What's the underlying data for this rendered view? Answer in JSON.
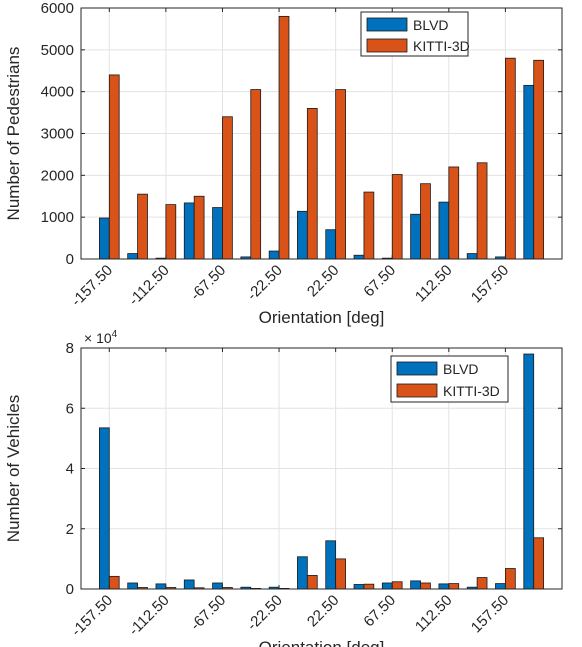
{
  "chart_data": [
    {
      "type": "bar",
      "xlabel": "Orientation [deg]",
      "ylabel": "Number of Pedestrians",
      "ylim": [
        0,
        6000
      ],
      "yticks": [
        0,
        1000,
        2000,
        3000,
        4000,
        5000,
        6000
      ],
      "ytick_labels": [
        "0",
        "1000",
        "2000",
        "3000",
        "4000",
        "5000",
        "6000"
      ],
      "y_exponent_label": "",
      "xlim": [
        -180,
        202.5
      ],
      "xticks": [
        -157.5,
        -112.5,
        -67.5,
        -22.5,
        22.5,
        67.5,
        112.5,
        157.5
      ],
      "xtick_labels": [
        "-157.50",
        "-112.50",
        "-67.50",
        "-22.50",
        "22.50",
        "67.50",
        "112.50",
        "157.50"
      ],
      "x": [
        -157.5,
        -135,
        -112.5,
        -90,
        -67.5,
        -45,
        -22.5,
        0,
        22.5,
        45,
        67.5,
        90,
        112.5,
        135,
        157.5,
        180
      ],
      "grid": true,
      "legend_position": "top-right",
      "series": [
        {
          "name": "BLVD",
          "color": "#0072BD",
          "values": [
            980,
            130,
            20,
            1340,
            1230,
            50,
            190,
            1140,
            700,
            90,
            20,
            1070,
            1360,
            130,
            50,
            4150
          ]
        },
        {
          "name": "KITTI-3D",
          "color": "#D95319",
          "values": [
            4400,
            1550,
            1300,
            1500,
            3400,
            4050,
            5800,
            3600,
            4050,
            1600,
            2020,
            1800,
            2200,
            2300,
            4800,
            4750
          ]
        }
      ]
    },
    {
      "type": "bar",
      "xlabel": "Orientation [deg]",
      "ylabel": "Number of Vehicles",
      "ylim": [
        0,
        8
      ],
      "yticks": [
        0,
        2,
        4,
        6,
        8
      ],
      "ytick_labels": [
        "0",
        "2",
        "4",
        "6",
        "8"
      ],
      "y_exponent_label": "× 10^4",
      "xlim": [
        -180,
        202.5
      ],
      "xticks": [
        -157.5,
        -112.5,
        -67.5,
        -22.5,
        22.5,
        67.5,
        112.5,
        157.5
      ],
      "xtick_labels": [
        "-157.50",
        "-112.50",
        "-67.50",
        "-22.50",
        "22.50",
        "67.50",
        "112.50",
        "157.50"
      ],
      "x": [
        -157.5,
        -135,
        -112.5,
        -90,
        -67.5,
        -45,
        -22.5,
        0,
        22.5,
        45,
        67.5,
        90,
        112.5,
        135,
        157.5,
        180
      ],
      "grid": true,
      "legend_position": "top-right",
      "series": [
        {
          "name": "BLVD",
          "color": "#0072BD",
          "values": [
            5.35,
            0.2,
            0.17,
            0.3,
            0.2,
            0.06,
            0.06,
            1.07,
            1.6,
            0.15,
            0.2,
            0.27,
            0.17,
            0.06,
            0.18,
            7.8
          ]
        },
        {
          "name": "KITTI-3D",
          "color": "#D95319",
          "values": [
            0.42,
            0.05,
            0.05,
            0.04,
            0.05,
            0.02,
            0.02,
            0.45,
            1.0,
            0.16,
            0.24,
            0.2,
            0.18,
            0.38,
            0.68,
            1.7
          ]
        }
      ]
    }
  ]
}
